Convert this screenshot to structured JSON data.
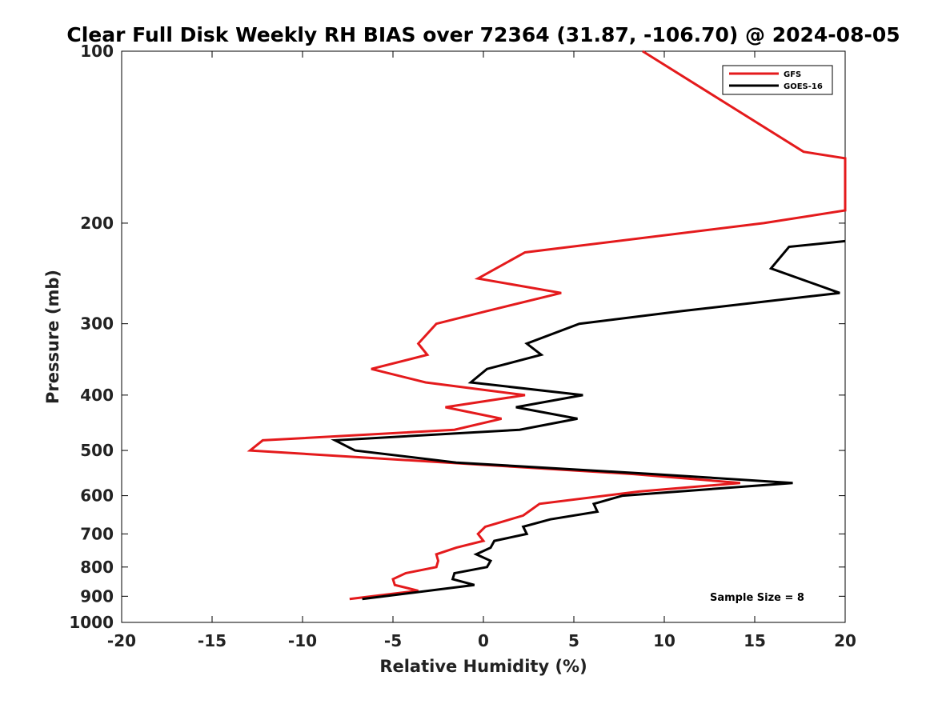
{
  "chart_data": {
    "type": "line",
    "title": "Clear Full Disk Weekly RH BIAS over 72364 (31.87, -106.70) @ 2024-08-05",
    "xlabel": "Relative Humidity (%)",
    "ylabel": "Pressure (mb)",
    "xlim": [
      -20,
      20
    ],
    "ylim": [
      100,
      1000
    ],
    "y_scale": "log",
    "y_reversed": true,
    "x_ticks": [
      -20,
      -15,
      -10,
      -5,
      0,
      5,
      10,
      15,
      20
    ],
    "y_ticks": [
      100,
      200,
      300,
      400,
      500,
      600,
      700,
      800,
      900,
      1000
    ],
    "grid": false,
    "legend_position": "top-right",
    "annotation": "Sample Size = 8",
    "series": [
      {
        "name": "GFS",
        "color": "#e41a1c",
        "points": [
          [
            8.8,
            100
          ],
          [
            17.7,
            150
          ],
          [
            20,
            154
          ],
          [
            20,
            190
          ],
          [
            15.5,
            200
          ],
          [
            2.3,
            225
          ],
          [
            -0.3,
            250
          ],
          [
            4.3,
            265
          ],
          [
            0.2,
            285
          ],
          [
            -2.6,
            300
          ],
          [
            -3.6,
            325
          ],
          [
            -3.1,
            340
          ],
          [
            -6.2,
            360
          ],
          [
            -3.2,
            380
          ],
          [
            2.3,
            400
          ],
          [
            -2.1,
            420
          ],
          [
            1.0,
            440
          ],
          [
            -1.6,
            460
          ],
          [
            -12.2,
            480
          ],
          [
            -12.9,
            500
          ],
          [
            8.3,
            550
          ],
          [
            14.2,
            570
          ],
          [
            8.6,
            590
          ],
          [
            3.1,
            620
          ],
          [
            2.2,
            650
          ],
          [
            0.1,
            680
          ],
          [
            -0.3,
            700
          ],
          [
            0.0,
            720
          ],
          [
            -1.5,
            740
          ],
          [
            -2.6,
            760
          ],
          [
            -2.5,
            780
          ],
          [
            -2.6,
            800
          ],
          [
            -4.3,
            820
          ],
          [
            -5.0,
            840
          ],
          [
            -4.9,
            860
          ],
          [
            -3.6,
            880
          ],
          [
            -7.4,
            910
          ]
        ]
      },
      {
        "name": "GOES-16",
        "color": "#000000",
        "points": [
          [
            20,
            215
          ],
          [
            16.9,
            220
          ],
          [
            15.9,
            240
          ],
          [
            19.7,
            265
          ],
          [
            11.0,
            285
          ],
          [
            5.3,
            300
          ],
          [
            2.4,
            325
          ],
          [
            3.2,
            340
          ],
          [
            0.2,
            360
          ],
          [
            -0.7,
            380
          ],
          [
            5.5,
            400
          ],
          [
            1.8,
            420
          ],
          [
            5.2,
            440
          ],
          [
            2.0,
            460
          ],
          [
            -8.2,
            480
          ],
          [
            -7.1,
            500
          ],
          [
            -1.5,
            525
          ],
          [
            9.4,
            550
          ],
          [
            17.1,
            570
          ],
          [
            7.7,
            600
          ],
          [
            6.1,
            620
          ],
          [
            6.3,
            640
          ],
          [
            3.7,
            660
          ],
          [
            2.2,
            680
          ],
          [
            2.4,
            700
          ],
          [
            0.6,
            720
          ],
          [
            0.4,
            740
          ],
          [
            -0.4,
            760
          ],
          [
            0.4,
            780
          ],
          [
            0.2,
            800
          ],
          [
            -1.6,
            820
          ],
          [
            -1.7,
            840
          ],
          [
            -0.5,
            860
          ],
          [
            -6.7,
            910
          ]
        ]
      }
    ]
  }
}
